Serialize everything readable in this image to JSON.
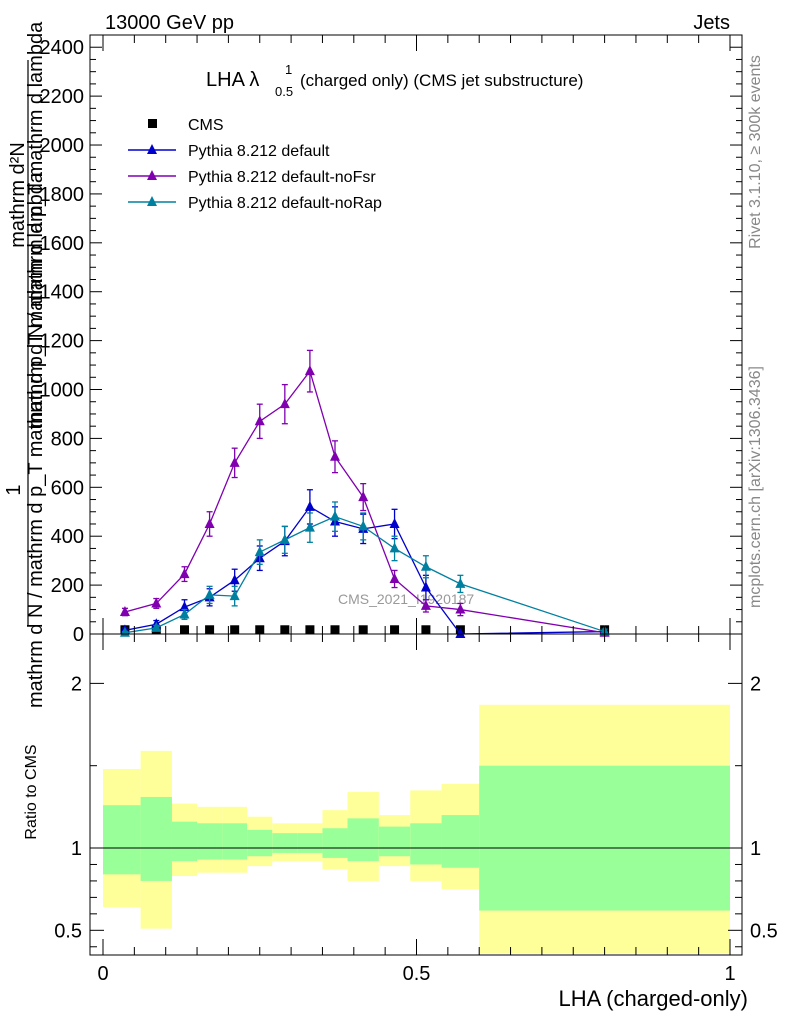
{
  "header": {
    "left": "13000 GeV pp",
    "right": "Jets"
  },
  "side": {
    "rivet": "Rivet 3.1.10, ≥ 300k events",
    "mcplots": "mcplots.cern.ch [arXiv:1306.3436]"
  },
  "watermark": "CMS_2021_I1920187",
  "colors": {
    "cms": "#000000",
    "default": "#0000cc",
    "noFsr": "#8000b0",
    "noRap": "#0080a0",
    "band_outer": "#ffff99",
    "band_inner": "#99ff99"
  },
  "chart_data": [
    {
      "type": "line",
      "title": "LHA λ",
      "title_sup": "1",
      "title_sub": "0.5",
      "title_rest": " (charged only) (CMS jet substructure)",
      "ylabel_main": "mathrm d N / mathrm d p_T mathrm d lambda",
      "ylabel_num": "mathrm d²N",
      "ylabel_one": "1",
      "ylabel_den": "mathrm d N / mathrm d p_T mathrm d p_T mathrm d lambda",
      "xlim": [
        0,
        1
      ],
      "ylim": [
        0,
        2450
      ],
      "y_ticks": [
        0,
        200,
        400,
        600,
        800,
        1000,
        1200,
        1400,
        1600,
        1800,
        2000,
        2200,
        2400
      ],
      "y_tick_labels": [
        "0",
        "200",
        "400",
        "600",
        "800",
        "1000",
        "1200",
        "1400",
        "1600",
        "1800",
        "2000",
        "2200",
        "2400"
      ],
      "legend": [
        "CMS",
        "Pythia 8.212 default",
        "Pythia 8.212 default-noFsr",
        "Pythia 8.212 default-noRap"
      ],
      "series": [
        {
          "name": "CMS",
          "x": [
            0.035,
            0.085,
            0.13,
            0.17,
            0.21,
            0.25,
            0.29,
            0.33,
            0.37,
            0.415,
            0.465,
            0.515,
            0.57,
            0.8
          ],
          "values": [
            5,
            5,
            5,
            5,
            5,
            5,
            5,
            5,
            5,
            5,
            5,
            5,
            5,
            5
          ]
        },
        {
          "name": "Pythia 8.212 default",
          "x": [
            0.035,
            0.085,
            0.13,
            0.17,
            0.21,
            0.25,
            0.29,
            0.33,
            0.37,
            0.415,
            0.465,
            0.515,
            0.57,
            0.8
          ],
          "values": [
            15,
            40,
            110,
            150,
            220,
            310,
            380,
            520,
            460,
            430,
            450,
            190,
            0,
            10
          ],
          "errors": [
            10,
            15,
            30,
            35,
            45,
            50,
            60,
            70,
            60,
            60,
            60,
            50,
            0,
            10
          ]
        },
        {
          "name": "Pythia 8.212 default-noFsr",
          "x": [
            0.035,
            0.085,
            0.13,
            0.17,
            0.21,
            0.25,
            0.29,
            0.33,
            0.37,
            0.415,
            0.465,
            0.515,
            0.57,
            0.8
          ],
          "values": [
            90,
            125,
            245,
            450,
            700,
            870,
            940,
            1075,
            725,
            560,
            225,
            115,
            100,
            5
          ],
          "errors": [
            15,
            20,
            30,
            50,
            60,
            70,
            80,
            85,
            65,
            55,
            35,
            25,
            25,
            5
          ]
        },
        {
          "name": "Pythia 8.212 default-noRap",
          "x": [
            0.035,
            0.085,
            0.13,
            0.17,
            0.21,
            0.25,
            0.29,
            0.33,
            0.37,
            0.415,
            0.465,
            0.515,
            0.57,
            0.8
          ],
          "values": [
            5,
            25,
            80,
            160,
            155,
            335,
            385,
            435,
            480,
            440,
            350,
            275,
            205,
            10
          ],
          "errors": [
            5,
            10,
            20,
            35,
            40,
            50,
            55,
            60,
            60,
            55,
            50,
            45,
            35,
            10
          ]
        }
      ]
    },
    {
      "type": "area",
      "ylabel": "Ratio to CMS",
      "xlabel": "LHA (charged-only)",
      "xlim": [
        0,
        1
      ],
      "ylim": [
        0.35,
        2.3
      ],
      "x_ticks": [
        0,
        0.5,
        1
      ],
      "x_tick_labels": [
        "0",
        "0.5",
        "1"
      ],
      "y_ticks": [
        0.5,
        1,
        2
      ],
      "y_tick_labels": [
        "0.5",
        "1",
        "2"
      ],
      "bins": [
        [
          0,
          0.06
        ],
        [
          0.06,
          0.11
        ],
        [
          0.11,
          0.15
        ],
        [
          0.15,
          0.19
        ],
        [
          0.19,
          0.23
        ],
        [
          0.23,
          0.27
        ],
        [
          0.27,
          0.31
        ],
        [
          0.31,
          0.35
        ],
        [
          0.35,
          0.39
        ],
        [
          0.39,
          0.44
        ],
        [
          0.44,
          0.49
        ],
        [
          0.49,
          0.54
        ],
        [
          0.54,
          0.6
        ],
        [
          0.6,
          1.0
        ]
      ],
      "inner_low": [
        0.84,
        0.8,
        0.92,
        0.93,
        0.93,
        0.95,
        0.97,
        0.97,
        0.94,
        0.92,
        0.95,
        0.9,
        0.88,
        0.62
      ],
      "inner_high": [
        1.26,
        1.31,
        1.16,
        1.15,
        1.15,
        1.11,
        1.09,
        1.09,
        1.12,
        1.18,
        1.13,
        1.15,
        1.2,
        1.5
      ],
      "outer_low": [
        0.64,
        0.51,
        0.83,
        0.85,
        0.85,
        0.89,
        0.92,
        0.92,
        0.87,
        0.8,
        0.89,
        0.8,
        0.75,
        0.36
      ],
      "outer_high": [
        1.48,
        1.59,
        1.27,
        1.25,
        1.25,
        1.19,
        1.15,
        1.15,
        1.23,
        1.34,
        1.2,
        1.35,
        1.39,
        1.87
      ],
      "reference": 1
    }
  ]
}
